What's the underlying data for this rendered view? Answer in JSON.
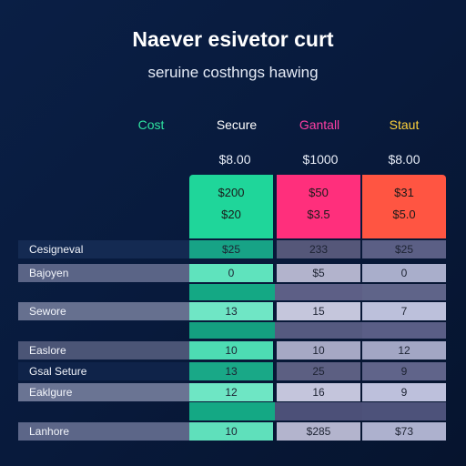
{
  "header": {
    "title": "Naever esivetor curt",
    "subtitle": "seruine costhngs hawing"
  },
  "columns": [
    {
      "label": "Cost",
      "color": "#2fe3a0"
    },
    {
      "label": "Secure",
      "color": "#ffffff",
      "price": "$8.00",
      "top": [
        "$200",
        "$20"
      ],
      "block_color": "#1ed59a"
    },
    {
      "label": "Gantall",
      "color": "#ff3fa4",
      "price": "$1000",
      "top": [
        "$50",
        "$3.5"
      ],
      "block_color": "#ff2f7c"
    },
    {
      "label": "Staut",
      "color": "#ffd23a",
      "price": "$8.00",
      "top": [
        "$31",
        "$5.0"
      ],
      "block_color": "#ff5040"
    }
  ],
  "rows": [
    {
      "label": "Cesigneval",
      "values": [
        "$25",
        "233",
        "$25"
      ]
    },
    {
      "label": "Bajoyen",
      "values": [
        "0",
        "$5",
        "0"
      ]
    },
    {
      "label": "Sewore",
      "values": [
        "13",
        "15",
        "7"
      ]
    },
    {
      "label": "Easlore",
      "values": [
        "10",
        "10",
        "12"
      ]
    },
    {
      "label": "Gsal Seture",
      "values": [
        "13",
        "25",
        "9"
      ]
    },
    {
      "label": "Eaklgure",
      "values": [
        "12",
        "16",
        "9"
      ]
    },
    {
      "label": "Lanhore",
      "values": [
        "10",
        "$285",
        "$73"
      ]
    }
  ]
}
